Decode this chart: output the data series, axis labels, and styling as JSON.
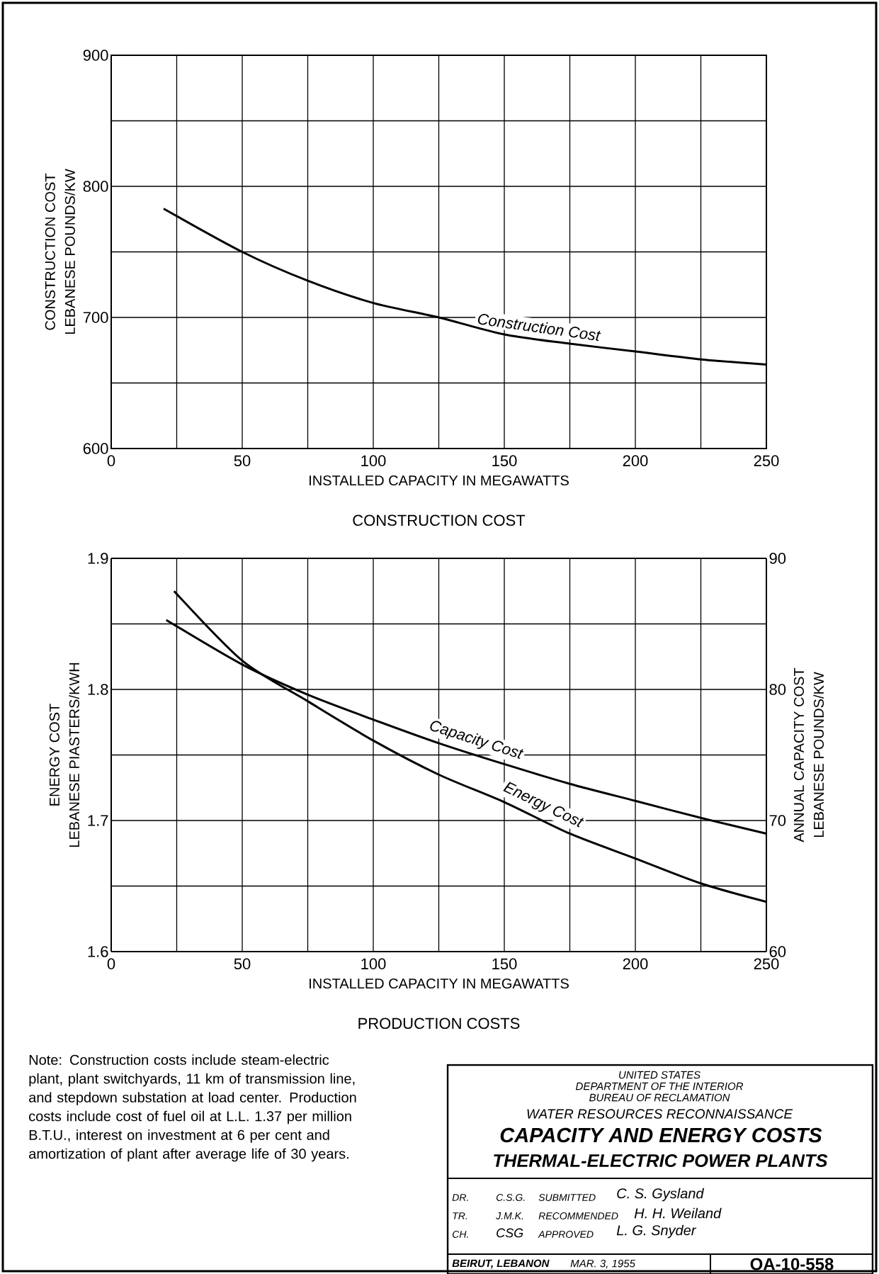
{
  "chart_data": [
    {
      "type": "line",
      "title": "CONSTRUCTION COST",
      "xlabel": "INSTALLED CAPACITY IN MEGAWATTS",
      "ylabel": "CONSTRUCTION COST LEBANESE POUNDS/KW",
      "xlim": [
        0,
        250
      ],
      "ylim": [
        600,
        900
      ],
      "xticks": [
        0,
        {
          "value": 25,
          "label": null
        },
        50,
        {
          "value": 75,
          "label": null
        },
        100,
        {
          "value": 125,
          "label": null
        },
        150,
        {
          "value": 175,
          "label": null
        },
        200,
        {
          "value": 225,
          "label": null
        },
        250
      ],
      "yticks": [
        600,
        {
          "value": 650,
          "label": null
        },
        700,
        {
          "value": 750,
          "label": null
        },
        800,
        {
          "value": 850,
          "label": null
        },
        900
      ],
      "grid": true,
      "series": [
        {
          "name": "Construction Cost",
          "color": "#000000",
          "x": [
            20,
            50,
            75,
            100,
            125,
            150,
            175,
            200,
            225,
            250
          ],
          "values": [
            783,
            750,
            728,
            711,
            700,
            687,
            680,
            674,
            668,
            664
          ]
        }
      ]
    },
    {
      "type": "line",
      "title": "PRODUCTION COSTS",
      "xlabel": "INSTALLED CAPACITY IN MEGAWATTS",
      "ylabel": "ENERGY COST LEBANESE PIASTERS/KWH",
      "y2label": "ANNUAL CAPACITY COST LEBANESE POUNDS/KW",
      "xlim": [
        0,
        250
      ],
      "ylim": [
        1.6,
        1.9
      ],
      "y2lim": [
        60,
        90
      ],
      "xticks": [
        0,
        {
          "value": 25,
          "label": null
        },
        50,
        {
          "value": 75,
          "label": null
        },
        100,
        {
          "value": 125,
          "label": null
        },
        150,
        {
          "value": 175,
          "label": null
        },
        200,
        {
          "value": 225,
          "label": null
        },
        250
      ],
      "yticks": [
        {
          "value": 1.6,
          "label": "1.6"
        },
        {
          "value": 1.65,
          "label": null
        },
        {
          "value": 1.7,
          "label": "1.7"
        },
        {
          "value": 1.75,
          "label": null
        },
        {
          "value": 1.8,
          "label": "1.8"
        },
        {
          "value": 1.85,
          "label": null
        },
        {
          "value": 1.9,
          "label": "1.9"
        }
      ],
      "y2ticks": [
        60,
        70,
        80,
        90
      ],
      "grid": true,
      "series": [
        {
          "name": "Energy Cost",
          "color": "#000000",
          "x": [
            24,
            50,
            75,
            100,
            125,
            150,
            175,
            200,
            225,
            250
          ],
          "values": [
            1.875,
            1.822,
            1.791,
            1.761,
            1.735,
            1.714,
            1.69,
            1.671,
            1.652,
            1.638
          ]
        },
        {
          "name": "Capacity Cost",
          "color": "#000000",
          "axis": "y2",
          "x": [
            21,
            50,
            75,
            100,
            125,
            150,
            175,
            200,
            225,
            250
          ],
          "values": [
            85.3,
            81.9,
            79.6,
            77.7,
            75.9,
            74.3,
            72.8,
            71.5,
            70.2,
            69.0
          ]
        }
      ],
      "annotations": [
        "Note: Construction costs include steam-electric plant, plant switchyards, 11 km of transmission line, and stepdown substation at load center. Production costs include cost of fuel oil at L.L. 1.37 per million B.T.U., interest on investment at 6 per cent and amortization of plant after average life of 30 years."
      ]
    },
    {
      "type": "other",
      "title": "CAPACITY AND ENERGY COSTS",
      "subtitle": "THERMAL-ELECTRIC POWER PLANTS",
      "annotations": [
        "UNITED STATES",
        "DEPARTMENT OF THE INTERIOR",
        "BUREAU OF RECLAMATION",
        "WATER RESOURCES RECONNAISSANCE",
        "DR.",
        "C.S.G.",
        "SUBMITTED",
        "C. S. Gysland",
        "TR.",
        "J.M.K.",
        "RECOMMENDED",
        "H. H. Weiland",
        "CH.",
        "CSG",
        "APPROVED",
        "L. G. Snyder",
        "BEIRUT, LEBANON",
        "MAR. 3, 1955",
        "OA-10-558"
      ]
    }
  ]
}
